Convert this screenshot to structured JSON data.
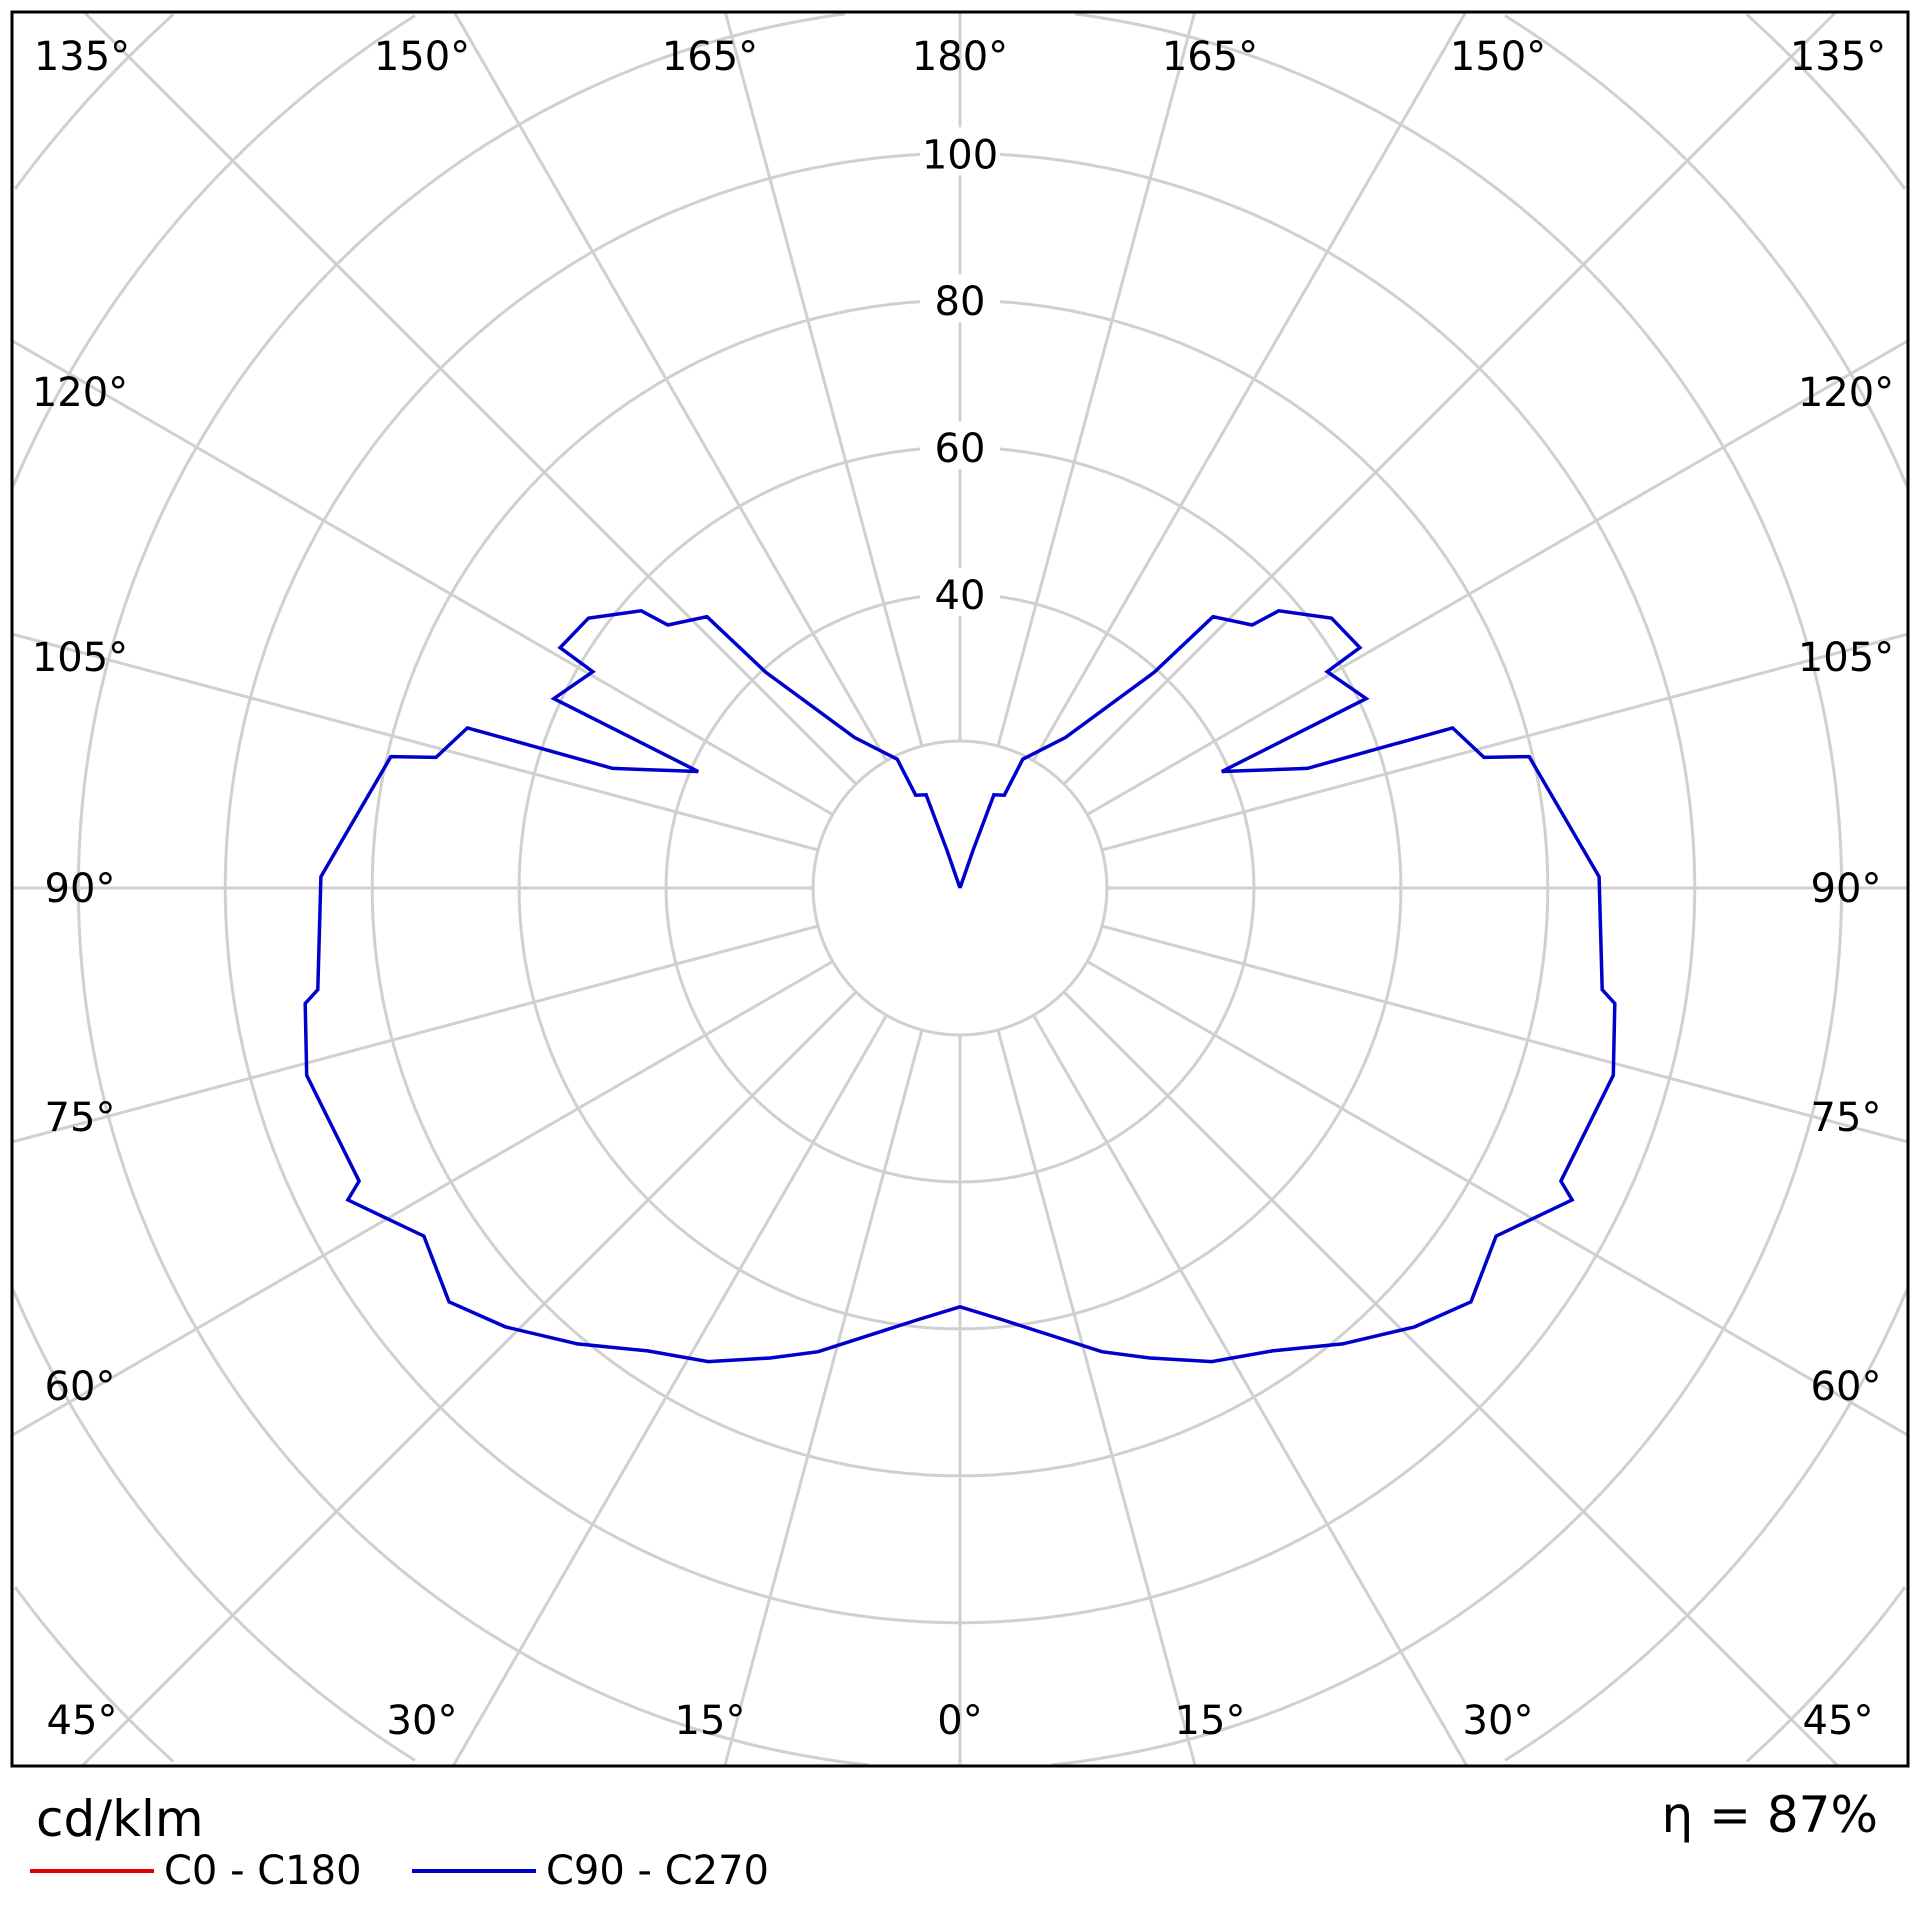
{
  "chart_data": {
    "type": "polar",
    "unit": "cd/klm",
    "efficiency": "η = 87%",
    "r_ticks": [
      20,
      40,
      60,
      80,
      100
    ],
    "r_tick_labels": [
      "40",
      "60",
      "80",
      "100"
    ],
    "angle_step_deg": 15,
    "grid": true,
    "angle_labels_top": [
      "135°",
      "150°",
      "165°",
      "180°",
      "165°",
      "150°",
      "135°"
    ],
    "angle_labels_side": [
      "120°",
      "105°",
      "90°",
      "75°",
      "60°"
    ],
    "angle_labels_bottom": [
      "45°",
      "30°",
      "15°",
      "0°",
      "15°",
      "30°",
      "45°"
    ],
    "legend_placement": "bottom-left",
    "series": [
      {
        "name": "C0 - C180",
        "color": "#e00000",
        "gamma": [],
        "values": []
      },
      {
        "name": "C90 - C270",
        "color": "#0000cc",
        "symmetric": true,
        "gamma": [
          0,
          5.5,
          17,
          22,
          28,
          34,
          40,
          46,
          51,
          57,
          63,
          64,
          74,
          80,
          81,
          91,
          103,
          104,
          108,
          109,
          114,
          115,
          120.5,
          121,
          126,
          131,
          132,
          137,
          138,
          145,
          154,
          154.5,
          160,
          161,
          180
        ],
        "values": [
          57,
          59,
          66,
          69,
          73,
          76,
          81,
          86,
          89.5,
          87,
          93.5,
          91,
          92.5,
          90.5,
          88.5,
          87,
          79.5,
          73.5,
          70.5,
          50,
          39,
          61,
          58,
          63.5,
          62.5,
          57.5,
          53.5,
          50.5,
          39.5,
          25,
          19.5,
          14,
          13.5,
          5.5,
          0
        ]
      }
    ]
  }
}
